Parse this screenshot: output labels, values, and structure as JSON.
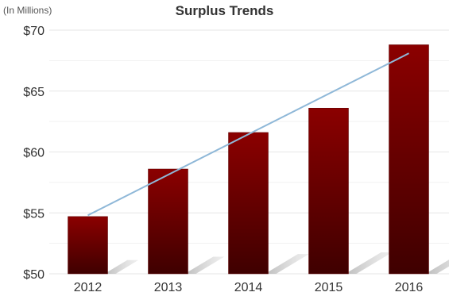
{
  "chart_data": {
    "type": "bar",
    "title": "Surplus Trends",
    "unit_note": "(In Millions)",
    "categories": [
      "2012",
      "2013",
      "2014",
      "2015",
      "2016"
    ],
    "values": [
      54.7,
      58.6,
      61.6,
      63.6,
      68.8
    ],
    "trendline": {
      "from": 54.8,
      "to": 68.1
    },
    "ylim": [
      50,
      70
    ],
    "yticks": [
      50,
      55,
      60,
      65,
      70
    ],
    "ytick_labels": [
      "$50",
      "$55",
      "$60",
      "$65",
      "$70"
    ],
    "xlabel": "",
    "ylabel": "",
    "grid": true,
    "legend": "none",
    "colors": {
      "bar_top": "#8b0000",
      "bar_bottom": "#3f0000",
      "trend": "#8fb8d8",
      "grid": "#e6e6e6",
      "shadow": "#c8c8c8"
    }
  }
}
